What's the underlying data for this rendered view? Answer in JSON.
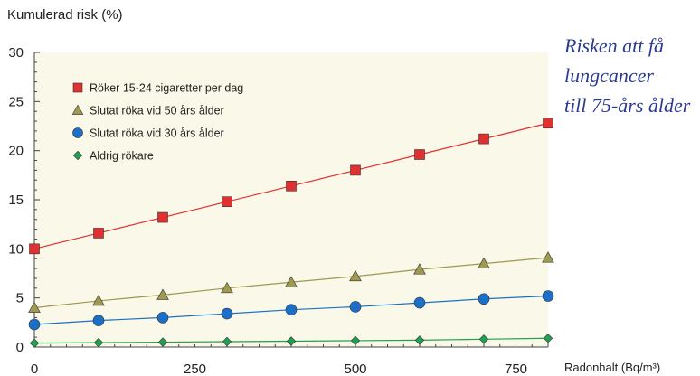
{
  "chart_data": {
    "type": "line",
    "title": "",
    "ylabel": "Kumulerad risk (%)",
    "xlabel": "Radonhalt  (Bq/m³)",
    "xlim": [
      0,
      800
    ],
    "ylim": [
      0,
      30
    ],
    "xticks": [
      0,
      250,
      500,
      750
    ],
    "yticks": [
      0,
      5,
      10,
      15,
      20,
      25,
      30
    ],
    "grid": false,
    "legend_position": "top-left",
    "background": "#faf8e8",
    "x": [
      0,
      100,
      200,
      300,
      400,
      500,
      600,
      700,
      800
    ],
    "series": [
      {
        "name": "Röker 15-24 cigaretter per dag",
        "marker": "square",
        "color": "#e03030",
        "line_color": "#e03030",
        "values": [
          10.0,
          11.6,
          13.2,
          14.8,
          16.4,
          18.0,
          19.6,
          21.2,
          22.8
        ]
      },
      {
        "name": "Slutat röka vid 50 års ålder",
        "marker": "triangle",
        "color": "#a09a50",
        "line_color": "#9c9a4e",
        "values": [
          4.0,
          4.7,
          5.3,
          6.0,
          6.6,
          7.2,
          7.9,
          8.5,
          9.1
        ]
      },
      {
        "name": "Slutat röka vid 30 års ålder",
        "marker": "circle",
        "color": "#1a70c8",
        "line_color": "#1a70c8",
        "values": [
          2.3,
          2.7,
          3.0,
          3.4,
          3.8,
          4.1,
          4.5,
          4.9,
          5.2
        ]
      },
      {
        "name": "Aldrig rökare",
        "marker": "diamond",
        "color": "#20a050",
        "line_color": "#20a050",
        "values": [
          0.4,
          0.45,
          0.5,
          0.55,
          0.6,
          0.65,
          0.7,
          0.8,
          0.9
        ]
      }
    ]
  },
  "side_note": {
    "lines": [
      "Risken att få",
      "lungcancer",
      "till 75-års ålder"
    ]
  }
}
